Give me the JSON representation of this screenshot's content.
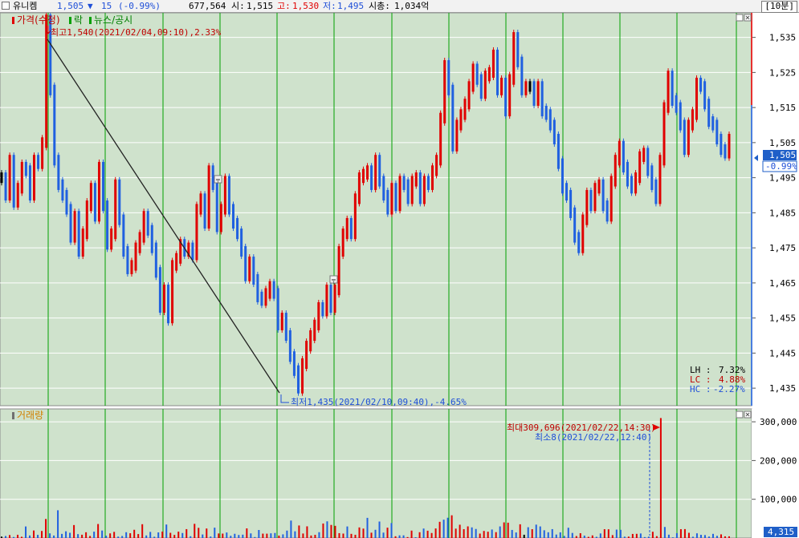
{
  "header": {
    "stock_name": "유니켐",
    "price": "1,505",
    "change_arrow": "▼",
    "change": "15",
    "change_pct": "(-0.99%)",
    "volume": "677,564",
    "open_label": "시:",
    "open": "1,515",
    "high_label": "고:",
    "high": "1,530",
    "low_label": "저:",
    "low": "1,495",
    "mktcap_label": "시총:",
    "mktcap": "1,034억",
    "period_button": "[10분]"
  },
  "price_panel": {
    "legend": {
      "price_label": "가격(수정)",
      "rak_label": "락",
      "news_label": "뉴스/공시"
    },
    "high_annotation": "최고1,540(2021/02/04,09:10),2.33%",
    "low_annotation": "최저1,435(2021/02/10,09:40),-4.65%",
    "current_price_tag": "1,505",
    "current_pct_tag": "-0.99%",
    "stats": {
      "lh_label": "LH :",
      "lh_value": "7.32%",
      "lc_label": "LC :",
      "lc_value": "4.88%",
      "hc_label": "HC :",
      "hc_value": "-2.27%"
    },
    "y_ticks": [
      "1,535",
      "1,525",
      "1,515",
      "1,505",
      "1,495",
      "1,485",
      "1,475",
      "1,465",
      "1,455",
      "1,445",
      "1,435"
    ],
    "y_tick_values": [
      1535,
      1525,
      1515,
      1505,
      1495,
      1485,
      1475,
      1465,
      1455,
      1445,
      1435
    ],
    "y_range": [
      1430,
      1542
    ]
  },
  "volume_panel": {
    "legend": "거래량",
    "max_annotation": "최대309,696(2021/02/22,14:30)",
    "min_annotation": "최소8(2021/02/22,12:40)",
    "y_ticks": [
      "300,000",
      "200,000",
      "100,000"
    ],
    "y_tick_values": [
      300000,
      200000,
      100000
    ],
    "y_max": 325000,
    "current_volume_tag": "4,315"
  },
  "colors": {
    "up": "#e00000",
    "down": "#2060e0",
    "neutral": "#000000",
    "background": "#cfe2cc",
    "vertical_grid": "#00a000",
    "horizontal_grid": "#ffffff",
    "axis_tag_bg": "#1f5fc8"
  },
  "chart_data": {
    "type": "bar",
    "xlabel": "",
    "ylabel": "",
    "grid": true,
    "price_series": [
      1495,
      1490,
      1500,
      1488,
      1492,
      1498,
      1497,
      1490,
      1500,
      1499,
      1505,
      1540,
      1520,
      1500,
      1493,
      1490,
      1486,
      1478,
      1484,
      1474,
      1479,
      1487,
      1492,
      1484,
      1498,
      1487,
      1476,
      1479,
      1493,
      1483,
      1474,
      1469,
      1470,
      1475,
      1478,
      1484,
      1480,
      1475,
      1468,
      1458,
      1463,
      1455,
      1470,
      1472,
      1476,
      1474,
      1475,
      1473,
      1486,
      1489,
      1482,
      1497,
      1493,
      1481,
      1486,
      1494,
      1486,
      1482,
      1479,
      1474,
      1467,
      1471,
      1466,
      1461,
      1460,
      1462,
      1464,
      1462,
      1453,
      1455,
      1450,
      1444,
      1440,
      1435,
      1442,
      1447,
      1450,
      1453,
      1458,
      1457,
      1463,
      1458,
      1463,
      1474,
      1479,
      1482,
      1479,
      1489,
      1495,
      1496,
      1497,
      1493,
      1500,
      1494,
      1490,
      1486,
      1492,
      1487,
      1494,
      1493,
      1489,
      1494,
      1495,
      1489,
      1494,
      1493,
      1497,
      1500,
      1512,
      1527,
      1520,
      1504,
      1510,
      1513,
      1516,
      1521,
      1526,
      1523,
      1519,
      1524,
      1525,
      1530,
      1520,
      1522,
      1514,
      1523,
      1535,
      1528,
      1520,
      1521,
      1521,
      1517,
      1521,
      1514,
      1513,
      1510,
      1506,
      1499,
      1492,
      1490,
      1485,
      1478,
      1475,
      1483,
      1490,
      1487,
      1492,
      1493,
      1487,
      1484,
      1494,
      1500,
      1504,
      1498,
      1494,
      1492,
      1495,
      1501,
      1502,
      1497,
      1493,
      1489,
      1500,
      1515,
      1524,
      1517,
      1515,
      1510,
      1503,
      1510,
      1513,
      1522,
      1521,
      1516,
      1511,
      1510,
      1506,
      1503,
      1502,
      1506
    ],
    "volume_series": [
      3600,
      5100,
      7600,
      2600,
      8300,
      3200,
      29800,
      6600,
      19400,
      8100,
      18200,
      49100,
      12000,
      6400,
      71600,
      10600,
      17300,
      13500,
      33400,
      10000,
      8400,
      14800,
      5200,
      16400,
      36100,
      19300,
      5900,
      11900,
      15800,
      3600,
      5200,
      14900,
      12300,
      21200,
      10200,
      35600,
      6600,
      15700,
      3300,
      14500,
      16600,
      34800,
      13400,
      8000,
      16400,
      12900,
      22900,
      4600,
      36600,
      26300,
      9100,
      24500,
      3800,
      26700,
      11700,
      11400,
      14200,
      5700,
      10900,
      7800,
      8600,
      24800,
      11900,
      2500,
      20700,
      11300,
      11200,
      12100,
      13000,
      6200,
      9400,
      19100,
      45000,
      17300,
      32300,
      11600,
      30100,
      6400,
      8200,
      15000,
      37400,
      43000,
      33700,
      31400,
      12500,
      11400,
      29800,
      10700,
      8300,
      27300,
      24300,
      52000,
      13700,
      21200,
      42500,
      13900,
      26700,
      38600,
      4500,
      6800,
      6800,
      2400,
      19100,
      2000,
      14900,
      24400,
      18800,
      12900,
      24600,
      41800,
      47300,
      52300,
      58600,
      24200,
      34300,
      22800,
      30000,
      27400,
      23300,
      11400,
      18200,
      16200,
      21900,
      15100,
      29900,
      40300,
      39500,
      20800,
      14300,
      35400,
      8400,
      27800,
      22800,
      34500,
      29900,
      20000,
      14800,
      22900,
      8900,
      14600,
      5300,
      26500,
      13100,
      5000,
      12400,
      6100,
      3000,
      6700,
      3100,
      11800,
      22700,
      22500,
      7400,
      21700,
      21100,
      3500,
      3600,
      10500,
      10800,
      11700,
      2400,
      3500,
      16100,
      4800,
      309696,
      28500,
      8600,
      1800,
      12500,
      22800,
      23000,
      13400,
      3300,
      12100,
      8200,
      7600,
      3700,
      10700,
      5500,
      9400,
      4300,
      4315
    ]
  }
}
